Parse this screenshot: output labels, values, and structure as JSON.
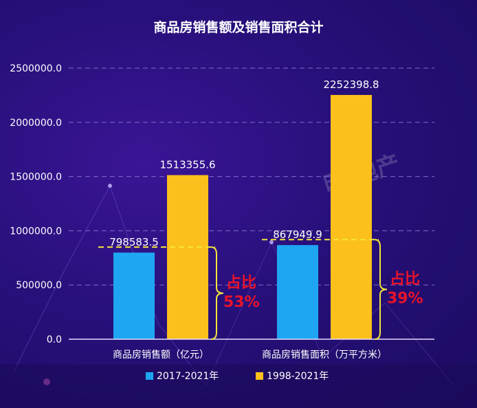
{
  "chart_data": {
    "type": "bar",
    "title": "商品房销售额及销售面积合计",
    "categories": [
      "商品房销售额（亿元）",
      "商品房销售面积（万平方米）"
    ],
    "series": [
      {
        "name": "2017-2021年",
        "color": "#1ea6f2",
        "values": [
          798583.5,
          867949.9
        ],
        "labels": [
          "798583.5",
          "867949.9"
        ]
      },
      {
        "name": "1998-2021年",
        "color": "#fbc01b",
        "values": [
          1513355.6,
          2252398.8
        ],
        "labels": [
          "1513355.6",
          "2252398.8"
        ]
      }
    ],
    "ylim": [
      0,
      2500000
    ],
    "yticks": [
      0,
      500000,
      1000000,
      1500000,
      2000000,
      2500000
    ],
    "ytick_labels": [
      "0.0",
      "500000.0",
      "1000000.0",
      "1500000.0",
      "2000000.0",
      "2500000.0"
    ],
    "grid": true,
    "legend_position": "bottom",
    "annotations": [
      {
        "text_line1": "占比",
        "text_line2": "53%",
        "category": 0
      },
      {
        "text_line1": "占比",
        "text_line2": "39%",
        "category": 1
      }
    ],
    "watermark": "明 地产"
  },
  "colors": {
    "background": "#27107a",
    "bar_recent": "#1ea6f2",
    "bar_total": "#fbc01b",
    "annotation": "#e8132a",
    "guide": "#f5e63c"
  }
}
